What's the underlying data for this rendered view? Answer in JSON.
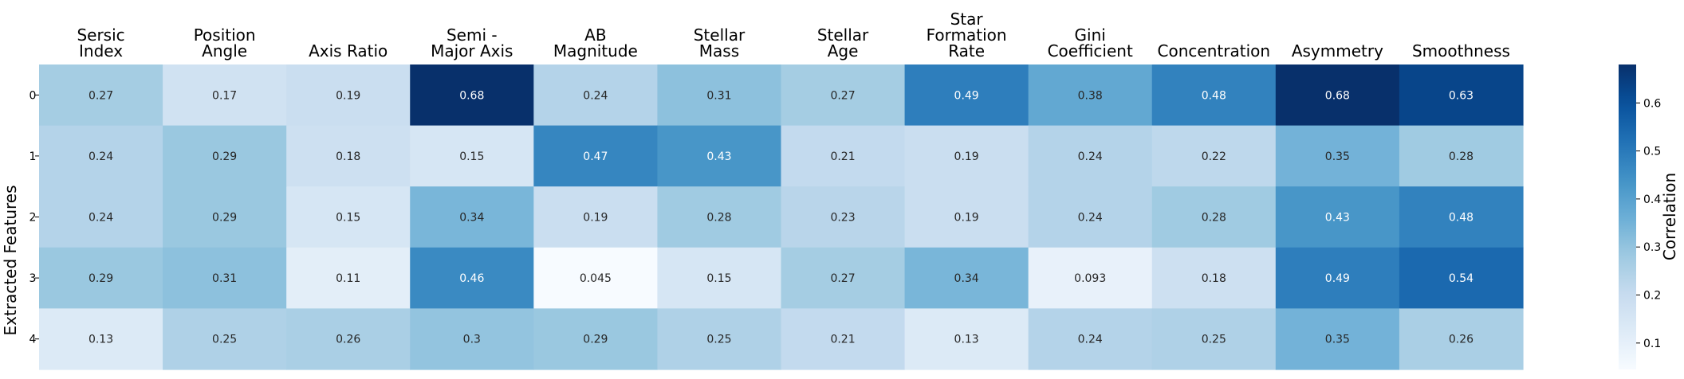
{
  "chart_data": {
    "type": "heatmap",
    "title": "",
    "xlabel": "",
    "ylabel": "Extracted Features",
    "columns": [
      [
        "Sersic",
        "Index"
      ],
      [
        "Position",
        "Angle"
      ],
      [
        "Axis Ratio"
      ],
      [
        "Semi -",
        "Major Axis"
      ],
      [
        "AB",
        "Magnitude"
      ],
      [
        "Stellar",
        "Mass"
      ],
      [
        "Stellar",
        "Age"
      ],
      [
        "Star",
        "Formation",
        "Rate"
      ],
      [
        "Gini",
        "Coefficient"
      ],
      [
        "Concentration"
      ],
      [
        "Asymmetry"
      ],
      [
        "Smoothness"
      ]
    ],
    "rows": [
      "0",
      "1",
      "2",
      "3",
      "4"
    ],
    "values": [
      [
        0.27,
        0.17,
        0.19,
        0.68,
        0.24,
        0.31,
        0.27,
        0.49,
        0.38,
        0.48,
        0.68,
        0.63
      ],
      [
        0.24,
        0.29,
        0.18,
        0.15,
        0.47,
        0.43,
        0.21,
        0.19,
        0.24,
        0.22,
        0.35,
        0.28
      ],
      [
        0.24,
        0.29,
        0.15,
        0.34,
        0.19,
        0.28,
        0.23,
        0.19,
        0.24,
        0.28,
        0.43,
        0.48
      ],
      [
        0.29,
        0.31,
        0.11,
        0.46,
        0.045,
        0.15,
        0.27,
        0.34,
        0.093,
        0.18,
        0.49,
        0.54
      ],
      [
        0.13,
        0.25,
        0.26,
        0.3,
        0.29,
        0.25,
        0.21,
        0.13,
        0.24,
        0.25,
        0.35,
        0.26
      ]
    ],
    "value_labels": [
      [
        "0.27",
        "0.17",
        "0.19",
        "0.68",
        "0.24",
        "0.31",
        "0.27",
        "0.49",
        "0.38",
        "0.48",
        "0.68",
        "0.63"
      ],
      [
        "0.24",
        "0.29",
        "0.18",
        "0.15",
        "0.47",
        "0.43",
        "0.21",
        "0.19",
        "0.24",
        "0.22",
        "0.35",
        "0.28"
      ],
      [
        "0.24",
        "0.29",
        "0.15",
        "0.34",
        "0.19",
        "0.28",
        "0.23",
        "0.19",
        "0.24",
        "0.28",
        "0.43",
        "0.48"
      ],
      [
        "0.29",
        "0.31",
        "0.11",
        "0.46",
        "0.045",
        "0.15",
        "0.27",
        "0.34",
        "0.093",
        "0.18",
        "0.49",
        "0.54"
      ],
      [
        "0.13",
        "0.25",
        "0.26",
        "0.3",
        "0.29",
        "0.25",
        "0.21",
        "0.13",
        "0.24",
        "0.25",
        "0.35",
        "0.26"
      ]
    ],
    "colormap": "Blues",
    "vmin": 0.045,
    "vmax": 0.68,
    "colorbar": {
      "label": "Correlation",
      "ticks": [
        0.1,
        0.2,
        0.3,
        0.4,
        0.5,
        0.6
      ],
      "tick_labels": [
        "0.1",
        "0.2",
        "0.3",
        "0.4",
        "0.5",
        "0.6"
      ],
      "placement": "right"
    },
    "x_axis_position": "top",
    "grid": false
  }
}
